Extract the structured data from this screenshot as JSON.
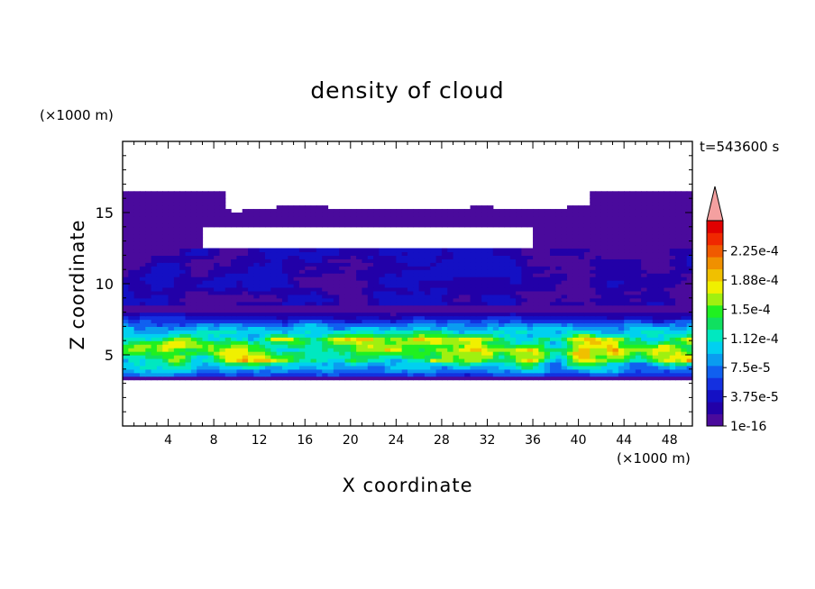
{
  "chart_data": {
    "type": "heatmap",
    "title": "density of cloud",
    "xlabel": "X coordinate",
    "ylabel": "Z coordinate",
    "x_unit": "(×1000 m)",
    "y_unit": "(×1000 m)",
    "time_label": "t=543600 s",
    "xlim": [
      0,
      50
    ],
    "ylim": [
      0,
      20
    ],
    "x_ticks": [
      4,
      8,
      12,
      16,
      20,
      24,
      28,
      32,
      36,
      40,
      44,
      48
    ],
    "y_ticks": [
      5,
      10,
      15
    ],
    "cloud_layer_z": [
      3.2,
      16.6
    ],
    "dense_layer_z": [
      4.5,
      6.2
    ],
    "colorbar": {
      "levels": [
        1e-16,
        3.75e-05,
        7.5e-05,
        0.000112,
        0.00015,
        0.000188,
        0.000225
      ],
      "labels": [
        "1e-16",
        "3.75e-5",
        "7.5e-5",
        "1.12e-4",
        "1.5e-4",
        "1.88e-4",
        "2.25e-4"
      ],
      "colors": [
        "#4a0a9c",
        "#2200a8",
        "#1410c4",
        "#1430e0",
        "#1060f0",
        "#0a9cf0",
        "#00d0f0",
        "#00e8c0",
        "#10e060",
        "#20f020",
        "#a0f010",
        "#f0f000",
        "#f0c000",
        "#f09000",
        "#f05a00",
        "#f02800",
        "#e00000"
      ],
      "extend_color": "#f4a0a0"
    }
  }
}
